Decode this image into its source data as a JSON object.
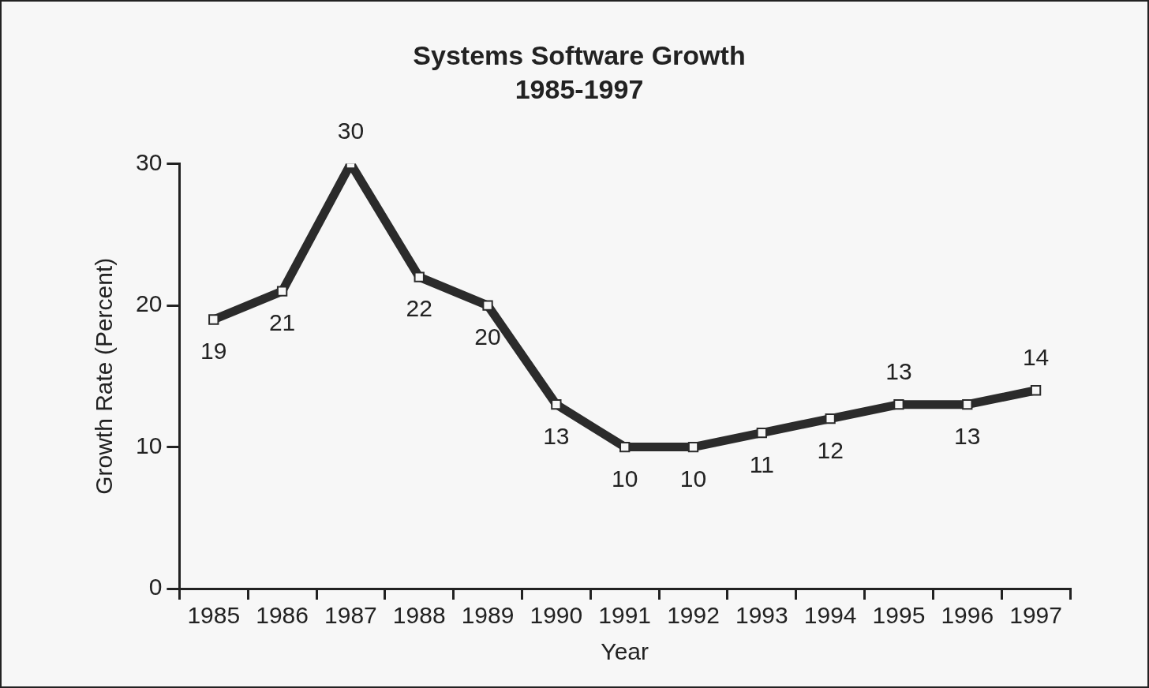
{
  "chart_data": {
    "type": "line",
    "title": "Systems Software Growth",
    "subtitle": "1985-1997",
    "xlabel": "Year",
    "ylabel": "Growth Rate (Percent)",
    "categories": [
      "1985",
      "1986",
      "1987",
      "1988",
      "1989",
      "1990",
      "1991",
      "1992",
      "1993",
      "1994",
      "1995",
      "1996",
      "1997"
    ],
    "values": [
      19,
      21,
      30,
      22,
      20,
      13,
      10,
      10,
      11,
      12,
      13,
      13,
      14
    ],
    "color": "#2b2b2b",
    "ylim": [
      0,
      30
    ],
    "yticks": [
      0,
      10,
      20,
      30
    ],
    "grid": false,
    "legend": false,
    "marker": "square",
    "line_style": "solid",
    "data_labels": true
  }
}
